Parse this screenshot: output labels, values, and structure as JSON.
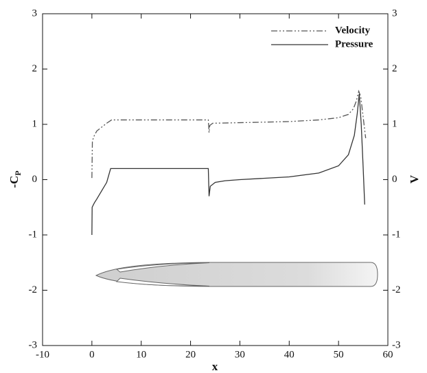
{
  "chart_data": {
    "type": "line",
    "xlabel": "x",
    "ylabel": "-C",
    "ylabel_subscript": "P",
    "y2label": "V",
    "xlim": [
      -10,
      60
    ],
    "xticks": [
      -10,
      0,
      10,
      20,
      30,
      40,
      50,
      60
    ],
    "ylim": [
      -3,
      3
    ],
    "yticks": [
      -3,
      -2,
      -1,
      0,
      1,
      2,
      3
    ],
    "y2lim": [
      -3,
      3
    ],
    "y2ticks": [
      -3,
      -2,
      -1,
      0,
      1,
      2,
      3
    ],
    "legend": "upper-right",
    "series": [
      {
        "name": "Velocity",
        "color": "#555555",
        "dash": "dashdotdot",
        "axis": "y2",
        "x": [
          0,
          0.1,
          0.5,
          1,
          2,
          3,
          4,
          10,
          20,
          23.6,
          23.75,
          23.9,
          24.5,
          30,
          40,
          46,
          50,
          52,
          53,
          53.6,
          54.1,
          54.5,
          54.9,
          55.3,
          55.5
        ],
        "values": [
          0.03,
          0.7,
          0.8,
          0.88,
          0.95,
          1.02,
          1.08,
          1.08,
          1.08,
          1.08,
          0.85,
          0.98,
          1.02,
          1.03,
          1.05,
          1.08,
          1.12,
          1.18,
          1.28,
          1.42,
          1.6,
          1.5,
          1.2,
          0.9,
          0.75
        ]
      },
      {
        "name": "Pressure",
        "color": "#333333",
        "dash": "solid",
        "axis": "y",
        "x": [
          0,
          0.05,
          0.5,
          1,
          2,
          3,
          3.8,
          10,
          20,
          23.6,
          23.75,
          24,
          25,
          27,
          30,
          40,
          46,
          50,
          52,
          53.2,
          53.8,
          54.2,
          54.6,
          55,
          55.3
        ],
        "values": [
          -1.0,
          -0.5,
          -0.42,
          -0.35,
          -0.2,
          -0.05,
          0.2,
          0.2,
          0.2,
          0.2,
          -0.3,
          -0.12,
          -0.05,
          -0.02,
          0.0,
          0.05,
          0.12,
          0.25,
          0.45,
          0.8,
          1.2,
          1.55,
          1.0,
          0.2,
          -0.45
        ]
      }
    ]
  }
}
